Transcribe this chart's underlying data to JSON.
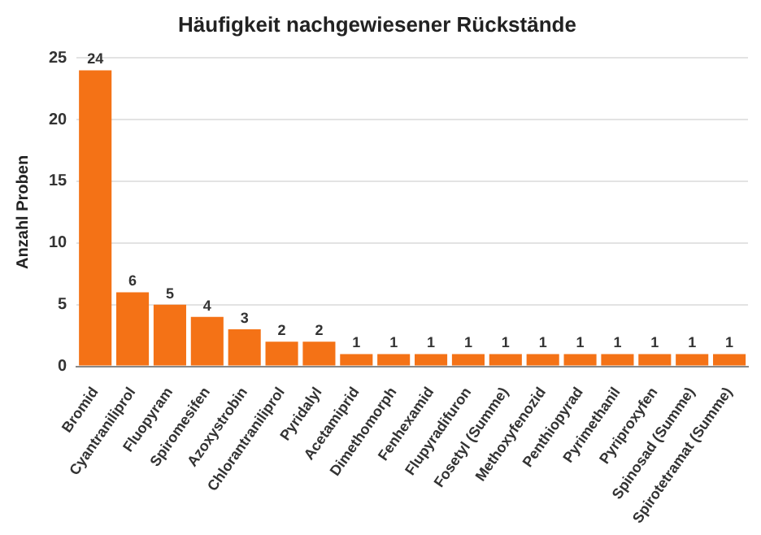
{
  "chart_data": {
    "type": "bar",
    "title": "Häufigkeit nachgewiesener Rückstände",
    "ylabel": "Anzahl Proben",
    "categories": [
      "Bromid",
      "Cyantraniliprol",
      "Fluopyram",
      "Spiromesifen",
      "Azoxystrobin",
      "Chlorantraniliprol",
      "Pyridalyl",
      "Acetamiprid",
      "Dimethomorph",
      "Fenhexamid",
      "Flupyradifuron",
      "Fosetyl (Summe)",
      "Methoxyfenozid",
      "Penthiopyrad",
      "Pyrimethanil",
      "Pyriproxyfen",
      "Spinosad (Summe)",
      "Spirotetramat (Summe)"
    ],
    "values": [
      24,
      6,
      5,
      4,
      3,
      2,
      2,
      1,
      1,
      1,
      1,
      1,
      1,
      1,
      1,
      1,
      1,
      1
    ],
    "color": "#f47216",
    "ylim": [
      0,
      25
    ],
    "yticks": [
      0,
      5,
      10,
      15,
      20,
      25
    ],
    "grid": "y",
    "data_labels": true,
    "legend": false
  }
}
